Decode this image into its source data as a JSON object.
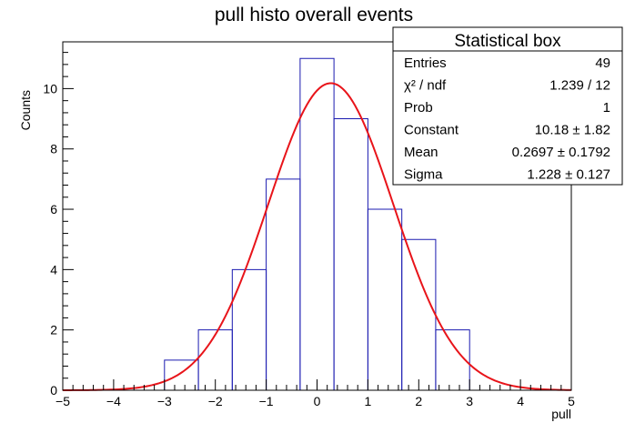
{
  "chart_data": {
    "type": "bar",
    "title": "pull histo overall events",
    "xlabel": "pull",
    "ylabel": "Counts",
    "xlim": [
      -5,
      5
    ],
    "ylim": [
      0,
      11.55
    ],
    "x_ticks": [
      -5,
      -4,
      -3,
      -2,
      -1,
      0,
      1,
      2,
      3,
      4,
      5
    ],
    "y_ticks": [
      0,
      2,
      4,
      6,
      8,
      10
    ],
    "grid": false,
    "histogram": {
      "name": "pull",
      "color": "#1a1ab0",
      "bin_edges": [
        -3.0,
        -2.333,
        -1.667,
        -1.0,
        -0.333,
        0.333,
        1.0,
        1.667,
        2.333,
        3.0
      ],
      "counts": [
        1,
        2,
        4,
        7,
        11,
        9,
        6,
        5,
        2
      ]
    },
    "fit": {
      "function": "gaus",
      "color": "#e8141a",
      "constant": 10.18,
      "mean": 0.2697,
      "sigma": 1.228
    },
    "stats_box": {
      "title": "Statistical box",
      "placement": "top-right",
      "rows": [
        {
          "label": "Entries",
          "value": "49"
        },
        {
          "label": "χ² / ndf",
          "value": "1.239 / 12"
        },
        {
          "label": "Prob",
          "value": "1"
        },
        {
          "label": "Constant",
          "value": "10.18 ± 1.82"
        },
        {
          "label": "Mean",
          "value": "0.2697 ± 0.1792"
        },
        {
          "label": "Sigma",
          "value": "1.228 ± 0.127"
        }
      ]
    }
  }
}
